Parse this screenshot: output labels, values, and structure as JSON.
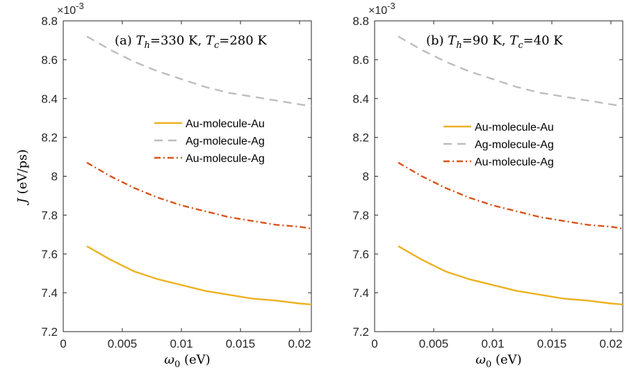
{
  "chart_data": [
    {
      "type": "line",
      "title_parts": {
        "prefix": "(a) ",
        "th_sym": "T",
        "th_sub": "h",
        "th_val": "=330 K, ",
        "tc_sym": "T",
        "tc_sub": "c",
        "tc_val": "=280 K"
      },
      "xlabel": {
        "sym": "ω",
        "sub": "0",
        "unit": " (eV)"
      },
      "ylabel": {
        "sym": "J",
        "unit": " (eV/ps)"
      },
      "y_multiplier": {
        "base": "×10",
        "exp": "-3"
      },
      "xlim": [
        0,
        0.021
      ],
      "ylim": [
        7.2,
        8.8
      ],
      "x_ticks": [
        {
          "v": 0,
          "label": "0"
        },
        {
          "v": 0.005,
          "label": "0.005"
        },
        {
          "v": 0.01,
          "label": "0.01"
        },
        {
          "v": 0.015,
          "label": "0.015"
        },
        {
          "v": 0.02,
          "label": "0.02"
        }
      ],
      "y_ticks": [
        {
          "v": 7.2,
          "label": "7.2"
        },
        {
          "v": 7.4,
          "label": "7.4"
        },
        {
          "v": 7.6,
          "label": "7.6"
        },
        {
          "v": 7.8,
          "label": "7.8"
        },
        {
          "v": 8.0,
          "label": "8"
        },
        {
          "v": 8.2,
          "label": "8.2"
        },
        {
          "v": 8.4,
          "label": "8.4"
        },
        {
          "v": 8.6,
          "label": "8.6"
        },
        {
          "v": 8.8,
          "label": "8.8"
        }
      ],
      "legend_position": "middle-right",
      "grid": false,
      "x": [
        0.002,
        0.004,
        0.006,
        0.008,
        0.01,
        0.012,
        0.014,
        0.016,
        0.018,
        0.02,
        0.021
      ],
      "series": [
        {
          "name": "Au-molecule-Au",
          "color": "#EDB120",
          "dash": "solid",
          "values": [
            7.64,
            7.57,
            7.51,
            7.47,
            7.44,
            7.41,
            7.39,
            7.37,
            7.36,
            7.345,
            7.34
          ]
        },
        {
          "name": "Ag-molecule-Ag",
          "color": "#BDBDBD",
          "dash": "dashed",
          "values": [
            8.72,
            8.65,
            8.59,
            8.54,
            8.5,
            8.46,
            8.43,
            8.41,
            8.39,
            8.37,
            8.36
          ]
        },
        {
          "name": "Au-molecule-Ag",
          "color": "#D95319",
          "dash": "dashdot",
          "values": [
            8.07,
            8.0,
            7.94,
            7.89,
            7.85,
            7.82,
            7.79,
            7.77,
            7.75,
            7.74,
            7.73
          ]
        }
      ]
    },
    {
      "type": "line",
      "title_parts": {
        "prefix": "(b) ",
        "th_sym": "T",
        "th_sub": "h",
        "th_val": "=90 K, ",
        "tc_sym": "T",
        "tc_sub": "c",
        "tc_val": "=40 K"
      },
      "xlabel": {
        "sym": "ω",
        "sub": "0",
        "unit": " (eV)"
      },
      "ylabel": {
        "sym": "",
        "unit": ""
      },
      "y_multiplier": {
        "base": "×10",
        "exp": "-3"
      },
      "xlim": [
        0,
        0.021
      ],
      "ylim": [
        7.2,
        8.8
      ],
      "x_ticks": [
        {
          "v": 0,
          "label": "0"
        },
        {
          "v": 0.005,
          "label": "0.005"
        },
        {
          "v": 0.01,
          "label": "0.01"
        },
        {
          "v": 0.015,
          "label": "0.015"
        },
        {
          "v": 0.02,
          "label": "0.02"
        }
      ],
      "y_ticks": [
        {
          "v": 7.2,
          "label": "7.2"
        },
        {
          "v": 7.4,
          "label": "7.4"
        },
        {
          "v": 7.6,
          "label": "7.6"
        },
        {
          "v": 7.8,
          "label": "7.8"
        },
        {
          "v": 8.0,
          "label": "8"
        },
        {
          "v": 8.2,
          "label": "8.2"
        },
        {
          "v": 8.4,
          "label": "8.4"
        },
        {
          "v": 8.6,
          "label": "8.6"
        },
        {
          "v": 8.8,
          "label": "8.8"
        }
      ],
      "legend_position": "middle-right",
      "grid": false,
      "x": [
        0.002,
        0.004,
        0.006,
        0.008,
        0.01,
        0.012,
        0.014,
        0.016,
        0.018,
        0.02,
        0.021
      ],
      "series": [
        {
          "name": "Au-molecule-Au",
          "color": "#EDB120",
          "dash": "solid",
          "values": [
            7.64,
            7.57,
            7.51,
            7.47,
            7.44,
            7.41,
            7.39,
            7.37,
            7.36,
            7.345,
            7.34
          ]
        },
        {
          "name": "Ag-molecule-Ag",
          "color": "#BDBDBD",
          "dash": "dashed",
          "values": [
            8.72,
            8.65,
            8.59,
            8.54,
            8.5,
            8.46,
            8.43,
            8.41,
            8.39,
            8.37,
            8.36
          ]
        },
        {
          "name": "Au-molecule-Ag",
          "color": "#D95319",
          "dash": "dashdot",
          "values": [
            8.07,
            8.0,
            7.94,
            7.89,
            7.85,
            7.82,
            7.79,
            7.77,
            7.75,
            7.74,
            7.73
          ]
        }
      ]
    }
  ]
}
